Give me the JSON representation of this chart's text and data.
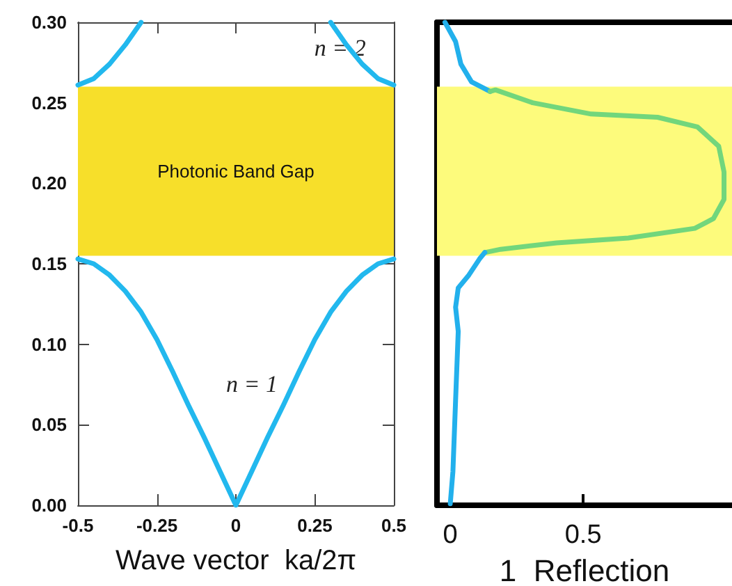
{
  "chart_data": [
    {
      "type": "line",
      "xlabel": "Wave vector  ka/2π",
      "xlim": [
        -0.5,
        0.5
      ],
      "xticks": [
        -0.5,
        -0.25,
        0,
        0.25,
        0.5
      ],
      "ylim": [
        0,
        0.3
      ],
      "yticks": [
        {
          "value": 0,
          "label": "0.00"
        },
        {
          "value": 0.05,
          "label": "0.05"
        },
        {
          "value": 0.1,
          "label": "0.10"
        },
        {
          "value": 0.15,
          "label": "0.15"
        },
        {
          "value": 0.2,
          "label": "0.20"
        },
        {
          "value": 0.25,
          "label": "0.25"
        },
        {
          "value": 0.3,
          "label": "0.30"
        }
      ],
      "series": [
        {
          "color": "#22b8ee",
          "x": [
            -0.5,
            -0.45,
            -0.4,
            -0.35,
            -0.3,
            -0.25,
            -0.2,
            -0.15,
            -0.1,
            -0.05,
            0,
            0.05,
            0.1,
            0.15,
            0.2,
            0.25,
            0.3,
            0.35,
            0.4,
            0.45,
            0.5
          ],
          "values": [
            0.153,
            0.15,
            0.143,
            0.133,
            0.12,
            0.103,
            0.083,
            0.062,
            0.042,
            0.021,
            0,
            0.021,
            0.042,
            0.062,
            0.083,
            0.103,
            0.12,
            0.133,
            0.143,
            0.15,
            0.153
          ]
        },
        {
          "color": "#22b8ee",
          "x": [
            -0.5,
            -0.45,
            -0.4,
            -0.35,
            -0.3
          ],
          "values": [
            0.261,
            0.265,
            0.274,
            0.286,
            0.3
          ]
        },
        {
          "color": "#22b8ee",
          "x": [
            0.3,
            0.35,
            0.4,
            0.45,
            0.5
          ],
          "values": [
            0.3,
            0.286,
            0.274,
            0.265,
            0.261
          ]
        }
      ],
      "bands": [
        {
          "axis": "y",
          "from": 0.155,
          "to": 0.26,
          "label": "Photonic Band Gap",
          "color": "#f7df2a"
        }
      ],
      "annotations": [
        {
          "text": "n = 2",
          "x": 0.33,
          "y": 0.284
        },
        "n = 1"
      ],
      "grid": false,
      "marker": "none"
    },
    {
      "type": "line",
      "xlabel": "1  Reflection",
      "xlim": [
        -0.05,
        1.06
      ],
      "xticks": [
        0,
        0.5
      ],
      "ylim": [
        0,
        0.3
      ],
      "tick_labels": "x",
      "series": [
        {
          "color": "#22b0ec",
          "x": [
            -0.02,
            0.02,
            0.04,
            0.08,
            0.15
          ],
          "values": [
            0.3,
            0.288,
            0.274,
            0.263,
            0.257
          ]
        },
        {
          "color": "#72d67c",
          "x": [
            0.15,
            0.17,
            0.31,
            0.53,
            0.78,
            0.93,
            1.01,
            1.03,
            1.03,
            0.99,
            0.92,
            0.67,
            0.4,
            0.19,
            0.13
          ],
          "values": [
            0.257,
            0.258,
            0.25,
            0.243,
            0.241,
            0.235,
            0.223,
            0.207,
            0.19,
            0.178,
            0.172,
            0.166,
            0.163,
            0.159,
            0.157
          ]
        },
        {
          "color": "#22b0ec",
          "x": [
            0.13,
            0.11,
            0.07,
            0.03,
            0.02,
            0.03,
            0.02,
            0.01,
            0
          ],
          "values": [
            0.157,
            0.153,
            0.143,
            0.135,
            0.123,
            0.108,
            0.065,
            0.021,
            0.001
          ]
        }
      ],
      "bands": [
        {
          "axis": "y",
          "from": 0.155,
          "to": 0.26,
          "color": "#fdfb7c"
        }
      ],
      "grid": false,
      "marker": "none"
    }
  ]
}
